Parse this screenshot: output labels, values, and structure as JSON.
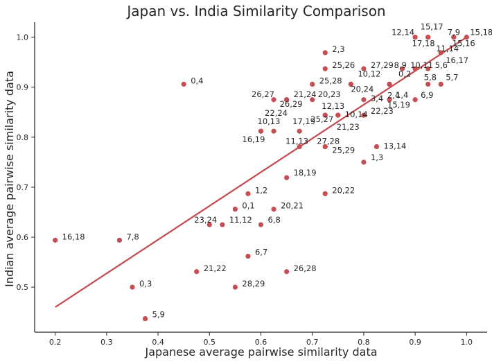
{
  "chart_data": {
    "type": "scatter",
    "title": "Japan vs. India Similarity Comparison",
    "xlabel": "Japanese average pairwise similarity data",
    "ylabel": "Indian average pairwise similarity data",
    "xlim": [
      0.16,
      1.04
    ],
    "ylim": [
      0.41,
      1.03
    ],
    "xticks": [
      "0.2",
      "0.3",
      "0.4",
      "0.5",
      "0.6",
      "0.7",
      "0.8",
      "0.9",
      "1.0"
    ],
    "yticks": [
      "0.5",
      "0.6",
      "0.7",
      "0.8",
      "0.9",
      "1.0"
    ],
    "grid": false,
    "colors": {
      "points": "#c44e52",
      "line": "#c44e52",
      "axis": "#262626"
    },
    "regression_line": {
      "x": [
        0.2,
        1.0
      ],
      "y": [
        0.46,
        1.0
      ]
    },
    "points": [
      {
        "label": "15,17",
        "x": 0.925,
        "y": 1.0
      },
      {
        "label": "7,9",
        "x": 0.975,
        "y": 1.0
      },
      {
        "label": "12,14",
        "x": 0.9,
        "y": 1.0
      },
      {
        "label": "15,18",
        "x": 1.0,
        "y": 1.0
      },
      {
        "label": "17,18",
        "x": 0.925,
        "y": 1.0
      },
      {
        "label": "15,16",
        "x": 0.975,
        "y": 1.0
      },
      {
        "label": "11,14",
        "x": 0.95,
        "y": 0.969
      },
      {
        "label": "16,17",
        "x": 0.95,
        "y": 0.969
      },
      {
        "label": "2,3",
        "x": 0.725,
        "y": 0.969
      },
      {
        "label": "25,26",
        "x": 0.725,
        "y": 0.937
      },
      {
        "label": "27,29",
        "x": 0.8,
        "y": 0.937
      },
      {
        "label": "8,9",
        "x": 0.875,
        "y": 0.937
      },
      {
        "label": "10,11",
        "x": 0.9,
        "y": 0.937
      },
      {
        "label": "5,6",
        "x": 0.925,
        "y": 0.937
      },
      {
        "label": "0,4",
        "x": 0.45,
        "y": 0.906
      },
      {
        "label": "25,28",
        "x": 0.7,
        "y": 0.906
      },
      {
        "label": "10,12",
        "x": 0.775,
        "y": 0.906
      },
      {
        "label": "0,2",
        "x": 0.85,
        "y": 0.906
      },
      {
        "label": "2,4",
        "x": 0.85,
        "y": 0.906
      },
      {
        "label": "5,8",
        "x": 0.925,
        "y": 0.906
      },
      {
        "label": "5,7",
        "x": 0.95,
        "y": 0.906
      },
      {
        "label": "20,24",
        "x": 0.775,
        "y": 0.906
      },
      {
        "label": "26,27",
        "x": 0.625,
        "y": 0.875
      },
      {
        "label": "21,24",
        "x": 0.65,
        "y": 0.875
      },
      {
        "label": "26,29",
        "x": 0.65,
        "y": 0.875
      },
      {
        "label": "20,23",
        "x": 0.7,
        "y": 0.875
      },
      {
        "label": "3,4",
        "x": 0.8,
        "y": 0.875
      },
      {
        "label": "1,4",
        "x": 0.85,
        "y": 0.875
      },
      {
        "label": "15,19",
        "x": 0.85,
        "y": 0.875
      },
      {
        "label": "6,9",
        "x": 0.9,
        "y": 0.875
      },
      {
        "label": "12,13",
        "x": 0.725,
        "y": 0.844
      },
      {
        "label": "10,14",
        "x": 0.75,
        "y": 0.844
      },
      {
        "label": "22,23",
        "x": 0.8,
        "y": 0.844
      },
      {
        "label": "25,27",
        "x": 0.725,
        "y": 0.844
      },
      {
        "label": "21,23",
        "x": 0.75,
        "y": 0.844
      },
      {
        "label": "22,24",
        "x": 0.625,
        "y": 0.812
      },
      {
        "label": "10,13",
        "x": 0.6,
        "y": 0.812
      },
      {
        "label": "16,19",
        "x": 0.6,
        "y": 0.812
      },
      {
        "label": "17,19",
        "x": 0.675,
        "y": 0.812
      },
      {
        "label": "11,13",
        "x": 0.675,
        "y": 0.781
      },
      {
        "label": "27,28",
        "x": 0.725,
        "y": 0.781
      },
      {
        "label": "25,29",
        "x": 0.725,
        "y": 0.781
      },
      {
        "label": "13,14",
        "x": 0.825,
        "y": 0.781
      },
      {
        "label": "1,3",
        "x": 0.8,
        "y": 0.75
      },
      {
        "label": "18,19",
        "x": 0.65,
        "y": 0.719
      },
      {
        "label": "1,2",
        "x": 0.575,
        "y": 0.687
      },
      {
        "label": "20,22",
        "x": 0.725,
        "y": 0.687
      },
      {
        "label": "0,1",
        "x": 0.55,
        "y": 0.656
      },
      {
        "label": "20,21",
        "x": 0.625,
        "y": 0.656
      },
      {
        "label": "23,24",
        "x": 0.5,
        "y": 0.625
      },
      {
        "label": "11,12",
        "x": 0.525,
        "y": 0.625
      },
      {
        "label": "6,8",
        "x": 0.6,
        "y": 0.625
      },
      {
        "label": "16,18",
        "x": 0.2,
        "y": 0.594
      },
      {
        "label": "7,8",
        "x": 0.325,
        "y": 0.594
      },
      {
        "label": "6,7",
        "x": 0.575,
        "y": 0.562
      },
      {
        "label": "21,22",
        "x": 0.475,
        "y": 0.531
      },
      {
        "label": "26,28",
        "x": 0.65,
        "y": 0.531
      },
      {
        "label": "0,3",
        "x": 0.35,
        "y": 0.5
      },
      {
        "label": "28,29",
        "x": 0.55,
        "y": 0.5
      },
      {
        "label": "5,9",
        "x": 0.375,
        "y": 0.437
      }
    ]
  }
}
